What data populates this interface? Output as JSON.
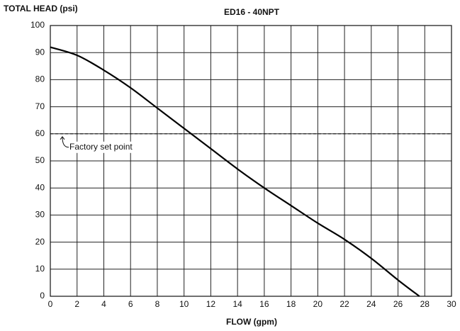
{
  "chart_data": {
    "type": "line",
    "title": "ED16 - 40NPT",
    "x_label": "FLOW (gpm)",
    "y_label": "TOTAL HEAD (psi)",
    "x": [
      0,
      2,
      4,
      6,
      8,
      10,
      12,
      14,
      16,
      18,
      20,
      22,
      24,
      26,
      27.6
    ],
    "series": [
      {
        "color": "#000000",
        "values": [
          92,
          89,
          83.5,
          77,
          69.5,
          62,
          54.5,
          47,
          40,
          33.5,
          27,
          21,
          14,
          6,
          0
        ]
      }
    ],
    "xlim": [
      0,
      30
    ],
    "xticks": [
      0,
      2,
      4,
      6,
      8,
      10,
      12,
      14,
      16,
      18,
      20,
      22,
      24,
      26,
      28,
      30
    ],
    "ylim": [
      0,
      100
    ],
    "yticks": [
      0,
      10,
      20,
      30,
      40,
      50,
      60,
      70,
      80,
      90,
      100
    ],
    "grid": true,
    "annotation": {
      "text": "Factory set point",
      "value": 60
    }
  }
}
